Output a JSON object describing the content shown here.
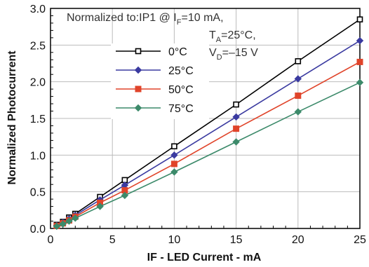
{
  "chart_data": {
    "type": "line",
    "title": "",
    "xlabel": "IF - LED Current - mA",
    "ylabel": "Normalized Photocurrent",
    "xlim": [
      0,
      25
    ],
    "ylim": [
      0,
      3.0
    ],
    "xticks": [
      0,
      5,
      10,
      15,
      20,
      25
    ],
    "yticks": [
      0.0,
      0.5,
      1.0,
      1.5,
      2.0,
      2.5,
      3.0
    ],
    "xtick_labels": [
      "0",
      "5",
      "10",
      "15",
      "20",
      "25"
    ],
    "ytick_labels": [
      "0.0",
      "0.5",
      "1.0",
      "1.5",
      "2.0",
      "2.5",
      "3.0"
    ],
    "grid": true,
    "legend_position": "upper-left",
    "annotation": {
      "line1_prefix": "Normalized to:IP1 @ I",
      "line1_sub": "F",
      "line1_suffix": "=10 mA,",
      "line2_prefix": "T",
      "line2_sub": "A",
      "line2_suffix": "=25°C,",
      "line3_prefix": "V",
      "line3_sub": "D",
      "line3_suffix": "=–15 V"
    },
    "x": [
      0.5,
      1,
      1.5,
      2,
      4,
      6,
      10,
      15,
      20,
      25
    ],
    "series": [
      {
        "name": "0°C",
        "color": "#000000",
        "marker": "open-square",
        "values": [
          0.05,
          0.09,
          0.15,
          0.2,
          0.43,
          0.66,
          1.12,
          1.69,
          2.28,
          2.85
        ]
      },
      {
        "name": "25°C",
        "color": "#3a3aa0",
        "marker": "diamond",
        "values": [
          0.04,
          0.08,
          0.13,
          0.18,
          0.39,
          0.59,
          1.0,
          1.52,
          2.04,
          2.56
        ]
      },
      {
        "name": "50°C",
        "color": "#e0442a",
        "marker": "square",
        "values": [
          0.035,
          0.07,
          0.11,
          0.16,
          0.35,
          0.52,
          0.88,
          1.36,
          1.81,
          2.27
        ]
      },
      {
        "name": "75°C",
        "color": "#3c8a6a",
        "marker": "diamond",
        "values": [
          0.03,
          0.06,
          0.1,
          0.14,
          0.3,
          0.45,
          0.77,
          1.18,
          1.59,
          1.99
        ]
      }
    ]
  }
}
